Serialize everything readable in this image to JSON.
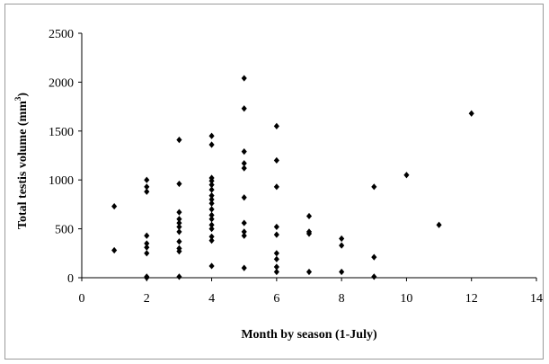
{
  "chart_data": {
    "type": "scatter",
    "title": "",
    "xlabel": "Month by season (1-July)",
    "ylabel": {
      "prefix": "Total testis volume (mm",
      "sup": "3",
      "suffix": ")"
    },
    "xlim": [
      0,
      14
    ],
    "ylim": [
      0,
      2500
    ],
    "xticks": [
      0,
      2,
      4,
      6,
      8,
      10,
      12,
      14
    ],
    "yticks": [
      0,
      500,
      1000,
      1500,
      2000,
      2500
    ],
    "grid": false,
    "legend": false,
    "marker": "diamond",
    "marker_color": "#000000",
    "points": [
      {
        "x": 1,
        "y": 730
      },
      {
        "x": 1,
        "y": 280
      },
      {
        "x": 2,
        "y": 1000
      },
      {
        "x": 2,
        "y": 930
      },
      {
        "x": 2,
        "y": 880
      },
      {
        "x": 2,
        "y": 430
      },
      {
        "x": 2,
        "y": 350
      },
      {
        "x": 2,
        "y": 310
      },
      {
        "x": 2,
        "y": 250
      },
      {
        "x": 2,
        "y": 10
      },
      {
        "x": 2,
        "y": 0
      },
      {
        "x": 3,
        "y": 1410
      },
      {
        "x": 3,
        "y": 960
      },
      {
        "x": 3,
        "y": 670
      },
      {
        "x": 3,
        "y": 600
      },
      {
        "x": 3,
        "y": 560
      },
      {
        "x": 3,
        "y": 520
      },
      {
        "x": 3,
        "y": 470
      },
      {
        "x": 3,
        "y": 370
      },
      {
        "x": 3,
        "y": 300
      },
      {
        "x": 3,
        "y": 270
      },
      {
        "x": 3,
        "y": 10
      },
      {
        "x": 4,
        "y": 1450
      },
      {
        "x": 4,
        "y": 1360
      },
      {
        "x": 4,
        "y": 1020
      },
      {
        "x": 4,
        "y": 990
      },
      {
        "x": 4,
        "y": 950
      },
      {
        "x": 4,
        "y": 900
      },
      {
        "x": 4,
        "y": 840
      },
      {
        "x": 4,
        "y": 800
      },
      {
        "x": 4,
        "y": 760
      },
      {
        "x": 4,
        "y": 700
      },
      {
        "x": 4,
        "y": 640
      },
      {
        "x": 4,
        "y": 600
      },
      {
        "x": 4,
        "y": 540
      },
      {
        "x": 4,
        "y": 500
      },
      {
        "x": 4,
        "y": 420
      },
      {
        "x": 4,
        "y": 380
      },
      {
        "x": 4,
        "y": 120
      },
      {
        "x": 5,
        "y": 2040
      },
      {
        "x": 5,
        "y": 1730
      },
      {
        "x": 5,
        "y": 1290
      },
      {
        "x": 5,
        "y": 1170
      },
      {
        "x": 5,
        "y": 1120
      },
      {
        "x": 5,
        "y": 820
      },
      {
        "x": 5,
        "y": 560
      },
      {
        "x": 5,
        "y": 470
      },
      {
        "x": 5,
        "y": 430
      },
      {
        "x": 5,
        "y": 100
      },
      {
        "x": 6,
        "y": 1550
      },
      {
        "x": 6,
        "y": 1200
      },
      {
        "x": 6,
        "y": 930
      },
      {
        "x": 6,
        "y": 520
      },
      {
        "x": 6,
        "y": 440
      },
      {
        "x": 6,
        "y": 250
      },
      {
        "x": 6,
        "y": 190
      },
      {
        "x": 6,
        "y": 110
      },
      {
        "x": 6,
        "y": 60
      },
      {
        "x": 7,
        "y": 630
      },
      {
        "x": 7,
        "y": 470
      },
      {
        "x": 7,
        "y": 450
      },
      {
        "x": 7,
        "y": 60
      },
      {
        "x": 8,
        "y": 400
      },
      {
        "x": 8,
        "y": 330
      },
      {
        "x": 8,
        "y": 60
      },
      {
        "x": 9,
        "y": 930
      },
      {
        "x": 9,
        "y": 210
      },
      {
        "x": 9,
        "y": 10
      },
      {
        "x": 10,
        "y": 1050
      },
      {
        "x": 11,
        "y": 540
      },
      {
        "x": 12,
        "y": 1680
      }
    ]
  }
}
